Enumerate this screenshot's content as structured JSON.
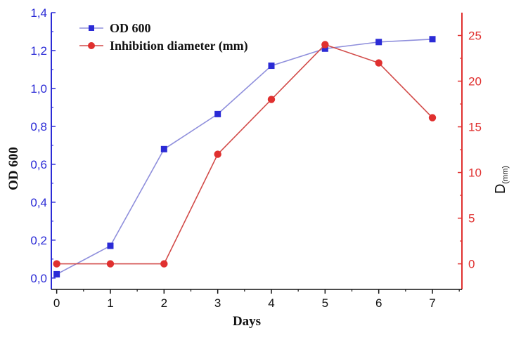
{
  "chart_data": {
    "type": "line",
    "title": "",
    "x": [
      0,
      1,
      2,
      3,
      4,
      5,
      6,
      7
    ],
    "xlabel": "Days",
    "xlim": [
      -0.1,
      7.55
    ],
    "x_ticks": [
      "0",
      "1",
      "2",
      "3",
      "4",
      "5",
      "6",
      "7"
    ],
    "y_left": {
      "label": "OD 600",
      "lim": [
        -0.06,
        1.4
      ],
      "ticks": [
        0.0,
        0.2,
        0.4,
        0.6,
        0.8,
        1.0,
        1.2,
        1.4
      ],
      "tick_labels": [
        "0,0",
        "0,2",
        "0,4",
        "0,6",
        "0,8",
        "1,0",
        "1,2",
        "1,4"
      ],
      "color": "#2b2bd6"
    },
    "y_right": {
      "label": "D",
      "label_subscript": "(mm)",
      "lim": [
        -2.8,
        27.5
      ],
      "ticks": [
        0,
        5,
        10,
        15,
        20,
        25
      ],
      "tick_labels": [
        "0",
        "5",
        "10",
        "15",
        "20",
        "25"
      ],
      "color": "#e0302f"
    },
    "series": [
      {
        "name": "OD 600",
        "axis": "left",
        "marker": "square",
        "color": "#2b2bd6",
        "line_color": "#8f8fdc",
        "values": [
          0.02,
          0.17,
          0.68,
          0.865,
          1.12,
          1.21,
          1.245,
          1.26
        ]
      },
      {
        "name": "Inhibition diameter (mm)",
        "axis": "right",
        "marker": "circle",
        "color": "#e0302f",
        "line_color": "#d24a48",
        "values": [
          0,
          0,
          0,
          12,
          18,
          24,
          22,
          16
        ]
      }
    ],
    "legend_position": "top-left",
    "grid": false
  }
}
